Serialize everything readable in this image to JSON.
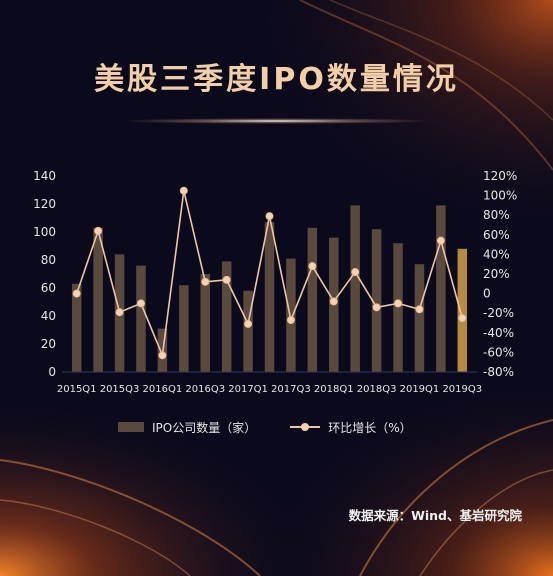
{
  "title": "美股三季度IPO数量情况",
  "legend": {
    "bar_label": "IPO公司数量（家）",
    "line_label": "环比增长（%）"
  },
  "source": "数据来源：Wind、基岩研究院",
  "colors": {
    "background": "#0b0a1c",
    "title": "#f3cfa7",
    "bar": "#5a4a3e",
    "bar_highlight": "#b58a42",
    "line": "#efc6a4",
    "text": "#e6e6e6"
  },
  "chart_data": {
    "type": "bar",
    "categories": [
      "2015Q1",
      "2015Q2",
      "2015Q3",
      "2015Q4",
      "2016Q1",
      "2016Q2",
      "2016Q3",
      "2016Q4",
      "2017Q1",
      "2017Q2",
      "2017Q3",
      "2017Q4",
      "2018Q1",
      "2018Q2",
      "2018Q3",
      "2018Q4",
      "2019Q1",
      "2019Q2",
      "2019Q3"
    ],
    "x_tick_labels": [
      "2015Q1",
      "",
      "2015Q3",
      "",
      "2016Q1",
      "",
      "2016Q3",
      "",
      "2017Q1",
      "",
      "2017Q3",
      "",
      "2018Q1",
      "",
      "2018Q3",
      "",
      "2019Q1",
      "",
      "2019Q3"
    ],
    "series": [
      {
        "name": "IPO公司数量（家）",
        "type": "bar",
        "axis": "left",
        "values": [
          63,
          103,
          84,
          76,
          31,
          62,
          70,
          79,
          58,
          107,
          81,
          103,
          96,
          119,
          102,
          92,
          77,
          119,
          88
        ]
      },
      {
        "name": "环比增长（%）",
        "type": "line",
        "axis": "right",
        "values": [
          0,
          64,
          -19,
          -10,
          -63,
          105,
          12,
          14,
          -31,
          79,
          -27,
          28,
          -8,
          22,
          -14,
          -10,
          -16,
          54,
          -25
        ]
      }
    ],
    "y_left": {
      "ylim": [
        0,
        140
      ],
      "ticks": [
        "0",
        "20",
        "40",
        "60",
        "80",
        "100",
        "120",
        "140"
      ]
    },
    "y_right": {
      "ylim": [
        -80,
        120
      ],
      "ticks": [
        "-80%",
        "-60%",
        "-40%",
        "-20%",
        "0",
        "20%",
        "40%",
        "60%",
        "80%",
        "100%",
        "120%"
      ]
    },
    "highlight_index": 18,
    "grid": false,
    "legend_position": "bottom"
  }
}
